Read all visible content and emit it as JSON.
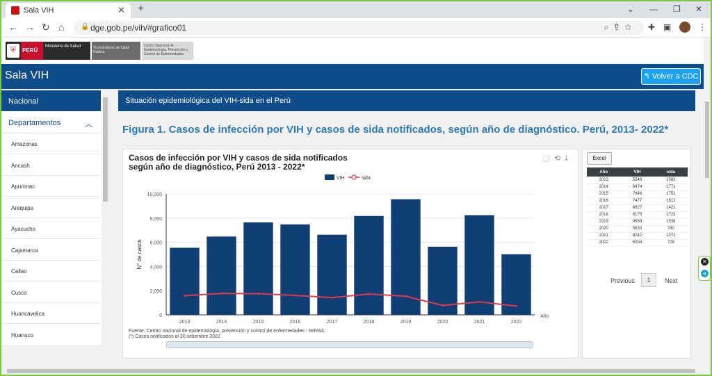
{
  "browser": {
    "tab_title": "Sala VIH",
    "tab_close": "✕",
    "new_tab": "+",
    "url": "dge.gob.pe/vih/#grafico01"
  },
  "header": {
    "logo_peru": "PERÚ",
    "logo_ministerio": "Ministerio de Salud",
    "logo_vice": "Viceministerio de Salud Pública",
    "logo_cdc": "Centro Nacional de Epidemiología, Prevención y Control de Enfermedades"
  },
  "banner": {
    "title": "Sala VIH",
    "back_button": "Volver a CDC"
  },
  "sidebar": {
    "nacional": "Nacional",
    "departamentos": "Departamentos",
    "items": [
      "Amazonas",
      "Ancash",
      "Apurímac",
      "Arequipa",
      "Ayacucho",
      "Cajamarca",
      "Callao",
      "Cusco",
      "Huancavelica",
      "Huanuco"
    ]
  },
  "main": {
    "section_title": "Situación epidemiológica del VIH-sida en el Perú",
    "figure_title": "Figura 1. Casos de infección por VIH y casos de sida notificados, según año de diagnóstico. Perú, 2013- 2022*",
    "source_line1": "Fuente: Centro nacional de epidemiología, prevención y control de enfermedades - MINSA.",
    "source_line2": "(*) Casos notificados al 30 setiembre 2022"
  },
  "table": {
    "excel_button": "Excel",
    "headers": [
      "Año",
      "VIH",
      "sida"
    ],
    "rows": [
      [
        "2013",
        "5546",
        "1583"
      ],
      [
        "2014",
        "6474",
        "1771"
      ],
      [
        "2015",
        "7646",
        "1751"
      ],
      [
        "2016",
        "7477",
        "1612"
      ],
      [
        "2017",
        "6627",
        "1421"
      ],
      [
        "2018",
        "8175",
        "1723"
      ],
      [
        "2019",
        "9559",
        "1538"
      ],
      [
        "2020",
        "5633",
        "780"
      ],
      [
        "2021",
        "8242",
        "1072"
      ],
      [
        "2022",
        "5004",
        "728"
      ]
    ],
    "prev": "Previous",
    "page": "1",
    "next": "Next"
  },
  "colors": {
    "vih": "#0f3f75",
    "sida": "#e0394a",
    "banner": "#0f4c8a"
  },
  "chart_data": {
    "type": "bar",
    "title": "Casos de infección por VIH y casos de sida notificados según año de diagnóstico, Perú 2013 - 2022*",
    "xlabel": "Año",
    "ylabel": "N° de casos",
    "ylim": [
      0,
      10000
    ],
    "yticks": [
      "0",
      "2,000",
      "4,000",
      "6,000",
      "8,000",
      "10,000"
    ],
    "categories": [
      "2013",
      "2014",
      "2015",
      "2016",
      "2017",
      "2018",
      "2019",
      "2020",
      "2021",
      "2022"
    ],
    "legend_position": "top",
    "series": [
      {
        "name": "VIH",
        "kind": "bar",
        "values": [
          5546,
          6474,
          7646,
          7477,
          6627,
          8175,
          9559,
          5633,
          8242,
          5004
        ]
      },
      {
        "name": "sida",
        "kind": "line",
        "values": [
          1583,
          1771,
          1751,
          1612,
          1421,
          1723,
          1538,
          780,
          1072,
          728
        ]
      }
    ]
  }
}
